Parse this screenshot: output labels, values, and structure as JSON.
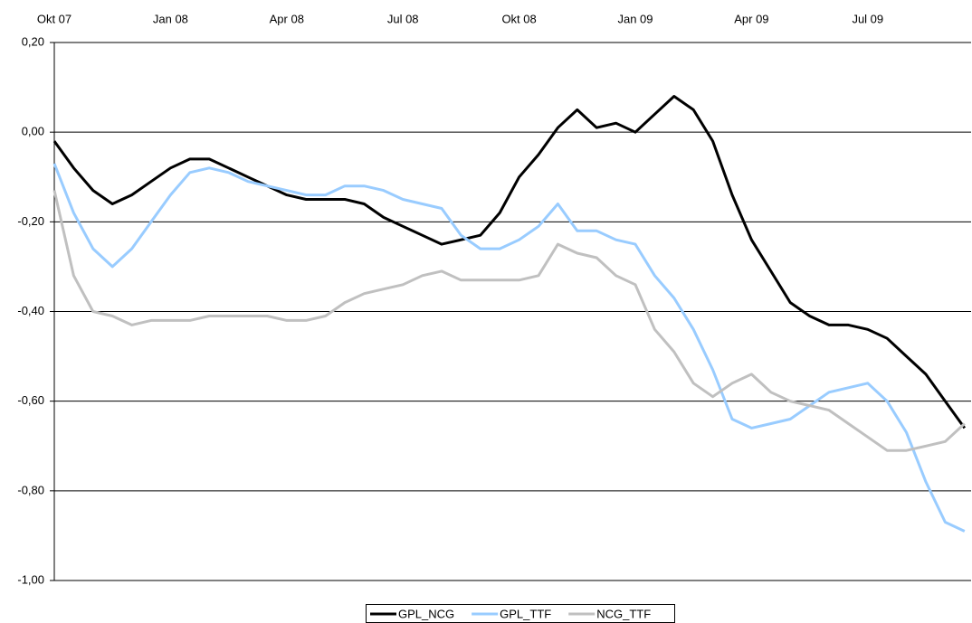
{
  "chart_data": {
    "type": "line",
    "categories": [
      "Okt 07",
      null,
      null,
      null,
      null,
      null,
      "Jan 08",
      null,
      null,
      null,
      null,
      null,
      "Apr 08",
      null,
      null,
      null,
      null,
      null,
      "Jul 08",
      null,
      null,
      null,
      null,
      null,
      "Okt 08",
      null,
      null,
      null,
      null,
      null,
      "Jan 09",
      null,
      null,
      null,
      null,
      null,
      "Apr 09",
      null,
      null,
      null,
      null,
      null,
      "Jul 09",
      null,
      null,
      null,
      null,
      null
    ],
    "series": [
      {
        "name": "GPL_NCG",
        "color": "#000000",
        "values": [
          -0.02,
          -0.08,
          -0.13,
          -0.16,
          -0.14,
          -0.11,
          -0.08,
          -0.06,
          -0.06,
          -0.08,
          -0.1,
          -0.12,
          -0.14,
          -0.15,
          -0.15,
          -0.15,
          -0.16,
          -0.19,
          -0.21,
          -0.23,
          -0.25,
          -0.24,
          -0.23,
          -0.18,
          -0.1,
          -0.05,
          0.01,
          0.05,
          0.01,
          0.02,
          0.0,
          0.04,
          0.08,
          0.05,
          -0.02,
          -0.14,
          -0.24,
          -0.31,
          -0.38,
          -0.41,
          -0.43,
          -0.43,
          -0.44,
          -0.46,
          -0.5,
          -0.54,
          -0.6,
          -0.66
        ]
      },
      {
        "name": "GPL_TTF",
        "color": "#99ccff",
        "values": [
          -0.07,
          -0.18,
          -0.26,
          -0.3,
          -0.26,
          -0.2,
          -0.14,
          -0.09,
          -0.08,
          -0.09,
          -0.11,
          -0.12,
          -0.13,
          -0.14,
          -0.14,
          -0.12,
          -0.12,
          -0.13,
          -0.15,
          -0.16,
          -0.17,
          -0.23,
          -0.26,
          -0.26,
          -0.24,
          -0.21,
          -0.16,
          -0.22,
          -0.22,
          -0.24,
          -0.25,
          -0.32,
          -0.37,
          -0.44,
          -0.53,
          -0.64,
          -0.66,
          -0.65,
          -0.64,
          -0.61,
          -0.58,
          -0.57,
          -0.56,
          -0.6,
          -0.67,
          -0.78,
          -0.87,
          -0.89
        ]
      },
      {
        "name": "NCG_TTF",
        "color": "#c0c0c0",
        "values": [
          -0.13,
          -0.32,
          -0.4,
          -0.41,
          -0.43,
          -0.42,
          -0.42,
          -0.42,
          -0.41,
          -0.41,
          -0.41,
          -0.41,
          -0.42,
          -0.42,
          -0.41,
          -0.38,
          -0.36,
          -0.35,
          -0.34,
          -0.32,
          -0.31,
          -0.33,
          -0.33,
          -0.33,
          -0.33,
          -0.32,
          -0.25,
          -0.27,
          -0.28,
          -0.32,
          -0.34,
          -0.44,
          -0.49,
          -0.56,
          -0.59,
          -0.56,
          -0.54,
          -0.58,
          -0.6,
          -0.61,
          -0.62,
          -0.65,
          -0.68,
          -0.71,
          -0.71,
          -0.7,
          -0.69,
          -0.65
        ]
      }
    ],
    "ylim": [
      -1.0,
      0.2
    ],
    "yticks": [
      {
        "value": 0.2,
        "label": "0,20"
      },
      {
        "value": 0.0,
        "label": "0,00"
      },
      {
        "value": -0.2,
        "label": "-0,20"
      },
      {
        "value": -0.4,
        "label": "-0,40"
      },
      {
        "value": -0.6,
        "label": "-0,60"
      },
      {
        "value": -0.8,
        "label": "-0,80"
      },
      {
        "value": -1.0,
        "label": "-1,00"
      }
    ],
    "grid": true
  }
}
